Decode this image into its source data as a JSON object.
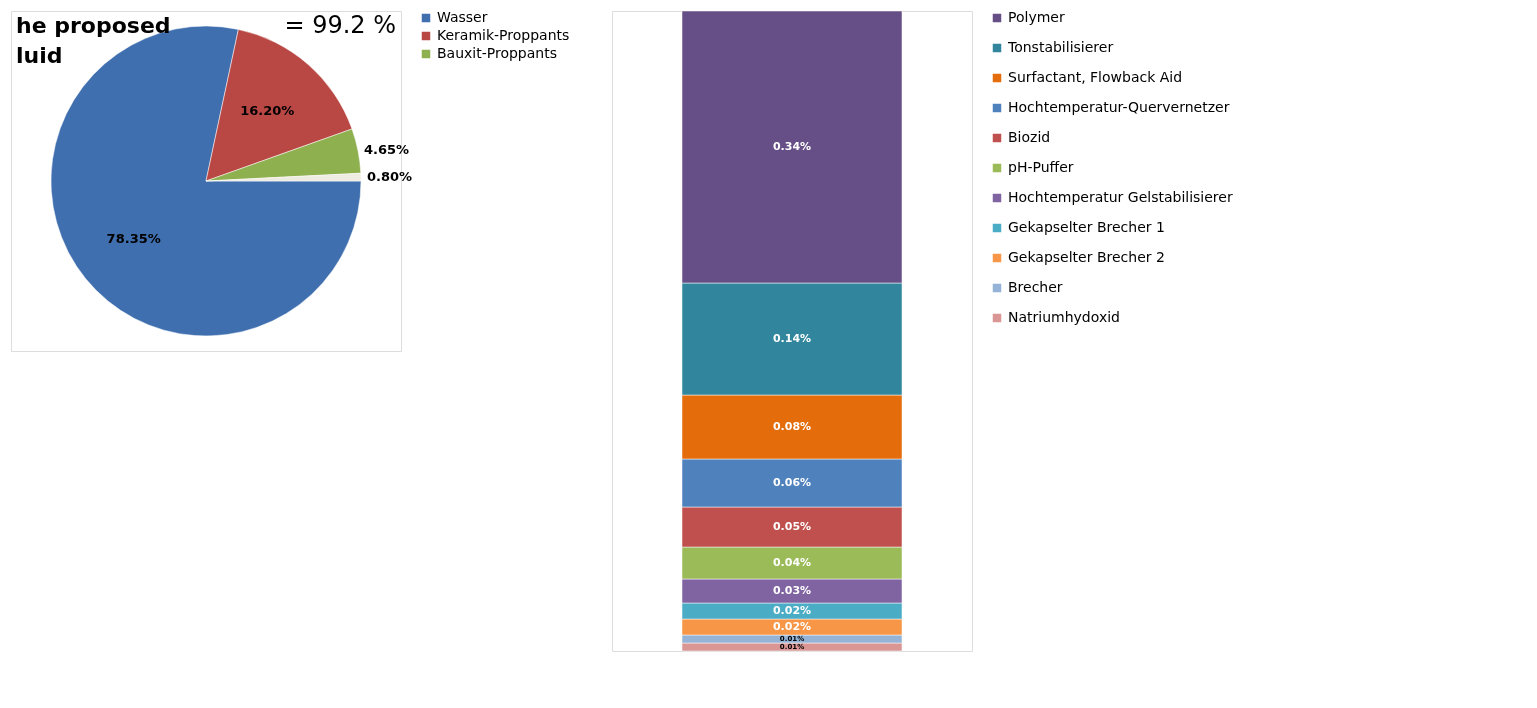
{
  "chart_data": [
    {
      "type": "pie",
      "categories": [
        "Wasser",
        "Keramik-Proppants",
        "Bauxit-Proppants",
        null
      ],
      "values": [
        78.35,
        16.2,
        4.65,
        0.8
      ],
      "colors": [
        "#3f6fae",
        "#b94744",
        "#8fb04e",
        "#eeece1"
      ],
      "value_labels": [
        "78.35%",
        "16.20%",
        "4.65%",
        "0.80%"
      ],
      "legend": "right",
      "annotations": [
        "he proposed",
        "luid",
        "= 99.2 %"
      ]
    },
    {
      "type": "bar",
      "stacked": true,
      "categories": [
        null
      ],
      "legend": "right",
      "series": [
        {
          "name": "Natriumhydoxid",
          "color": "#d99694",
          "values": [
            0.01
          ],
          "value_labels": [
            "0.01%"
          ]
        },
        {
          "name": "Brecher",
          "color": "#95b3d7",
          "values": [
            0.01
          ],
          "value_labels": [
            "0.01%"
          ]
        },
        {
          "name": "Gekapselter Brecher 2",
          "color": "#f79646",
          "values": [
            0.02
          ],
          "value_labels": [
            "0.02%"
          ]
        },
        {
          "name": "Gekapselter Brecher 1",
          "color": "#4bacc6",
          "values": [
            0.02
          ],
          "value_labels": [
            "0.02%"
          ]
        },
        {
          "name": "Hochtemperatur Gelstabilisierer",
          "color": "#8064a2",
          "values": [
            0.03
          ],
          "value_labels": [
            "0.03%"
          ]
        },
        {
          "name": "pH-Puffer",
          "color": "#9bbb59",
          "values": [
            0.04
          ],
          "value_labels": [
            "0.04%"
          ]
        },
        {
          "name": "Biozid",
          "color": "#c0504d",
          "values": [
            0.05
          ],
          "value_labels": [
            "0.05%"
          ]
        },
        {
          "name": "Hochtemperatur-Quervernetzer",
          "color": "#4f81bd",
          "values": [
            0.06
          ],
          "value_labels": [
            "0.06%"
          ]
        },
        {
          "name": "Surfactant, Flowback Aid",
          "color": "#e46c0a",
          "values": [
            0.08
          ],
          "value_labels": [
            "0.08%"
          ]
        },
        {
          "name": "Tonstabilisierer",
          "color": "#31859c",
          "values": [
            0.14
          ],
          "value_labels": [
            "0.14%"
          ]
        },
        {
          "name": "Polymer",
          "color": "#664f86",
          "values": [
            0.34
          ],
          "value_labels": [
            "0.34%"
          ]
        }
      ]
    }
  ]
}
